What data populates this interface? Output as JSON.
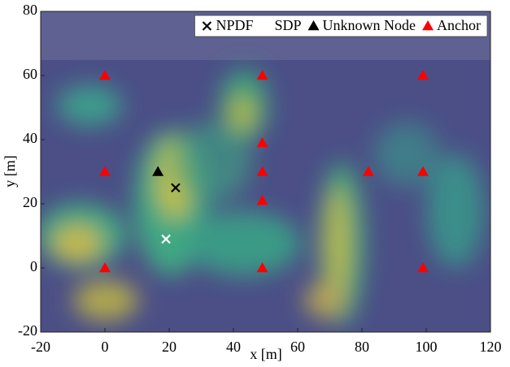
{
  "chart_data": {
    "type": "scatter",
    "x_label": "x [m]",
    "y_label": "y [m]",
    "xlim": [
      -20,
      120
    ],
    "ylim": [
      -20,
      80
    ],
    "xticks": [
      -20,
      0,
      20,
      40,
      60,
      80,
      100,
      120
    ],
    "yticks": [
      -20,
      0,
      20,
      40,
      60,
      80
    ],
    "legend": "upper right",
    "series": [
      {
        "name": "NPDF",
        "color": "#000000",
        "marker": "x",
        "x": [
          22
        ],
        "y": [
          25
        ]
      },
      {
        "name": "SDP",
        "color": "#ffffff",
        "marker": "x",
        "x": [
          19
        ],
        "y": [
          9
        ]
      },
      {
        "name": "Unknown Node",
        "color": "#000000",
        "marker": "triangle",
        "x": [
          16.5
        ],
        "y": [
          30
        ]
      },
      {
        "name": "Anchor",
        "color": "#ff0000",
        "marker": "triangle",
        "x": [
          0,
          49,
          99,
          0,
          49,
          82,
          99,
          49,
          49,
          0,
          49,
          99
        ],
        "y": [
          60,
          60,
          60,
          30,
          30,
          30,
          30,
          39,
          21,
          0,
          0,
          0
        ]
      }
    ]
  }
}
